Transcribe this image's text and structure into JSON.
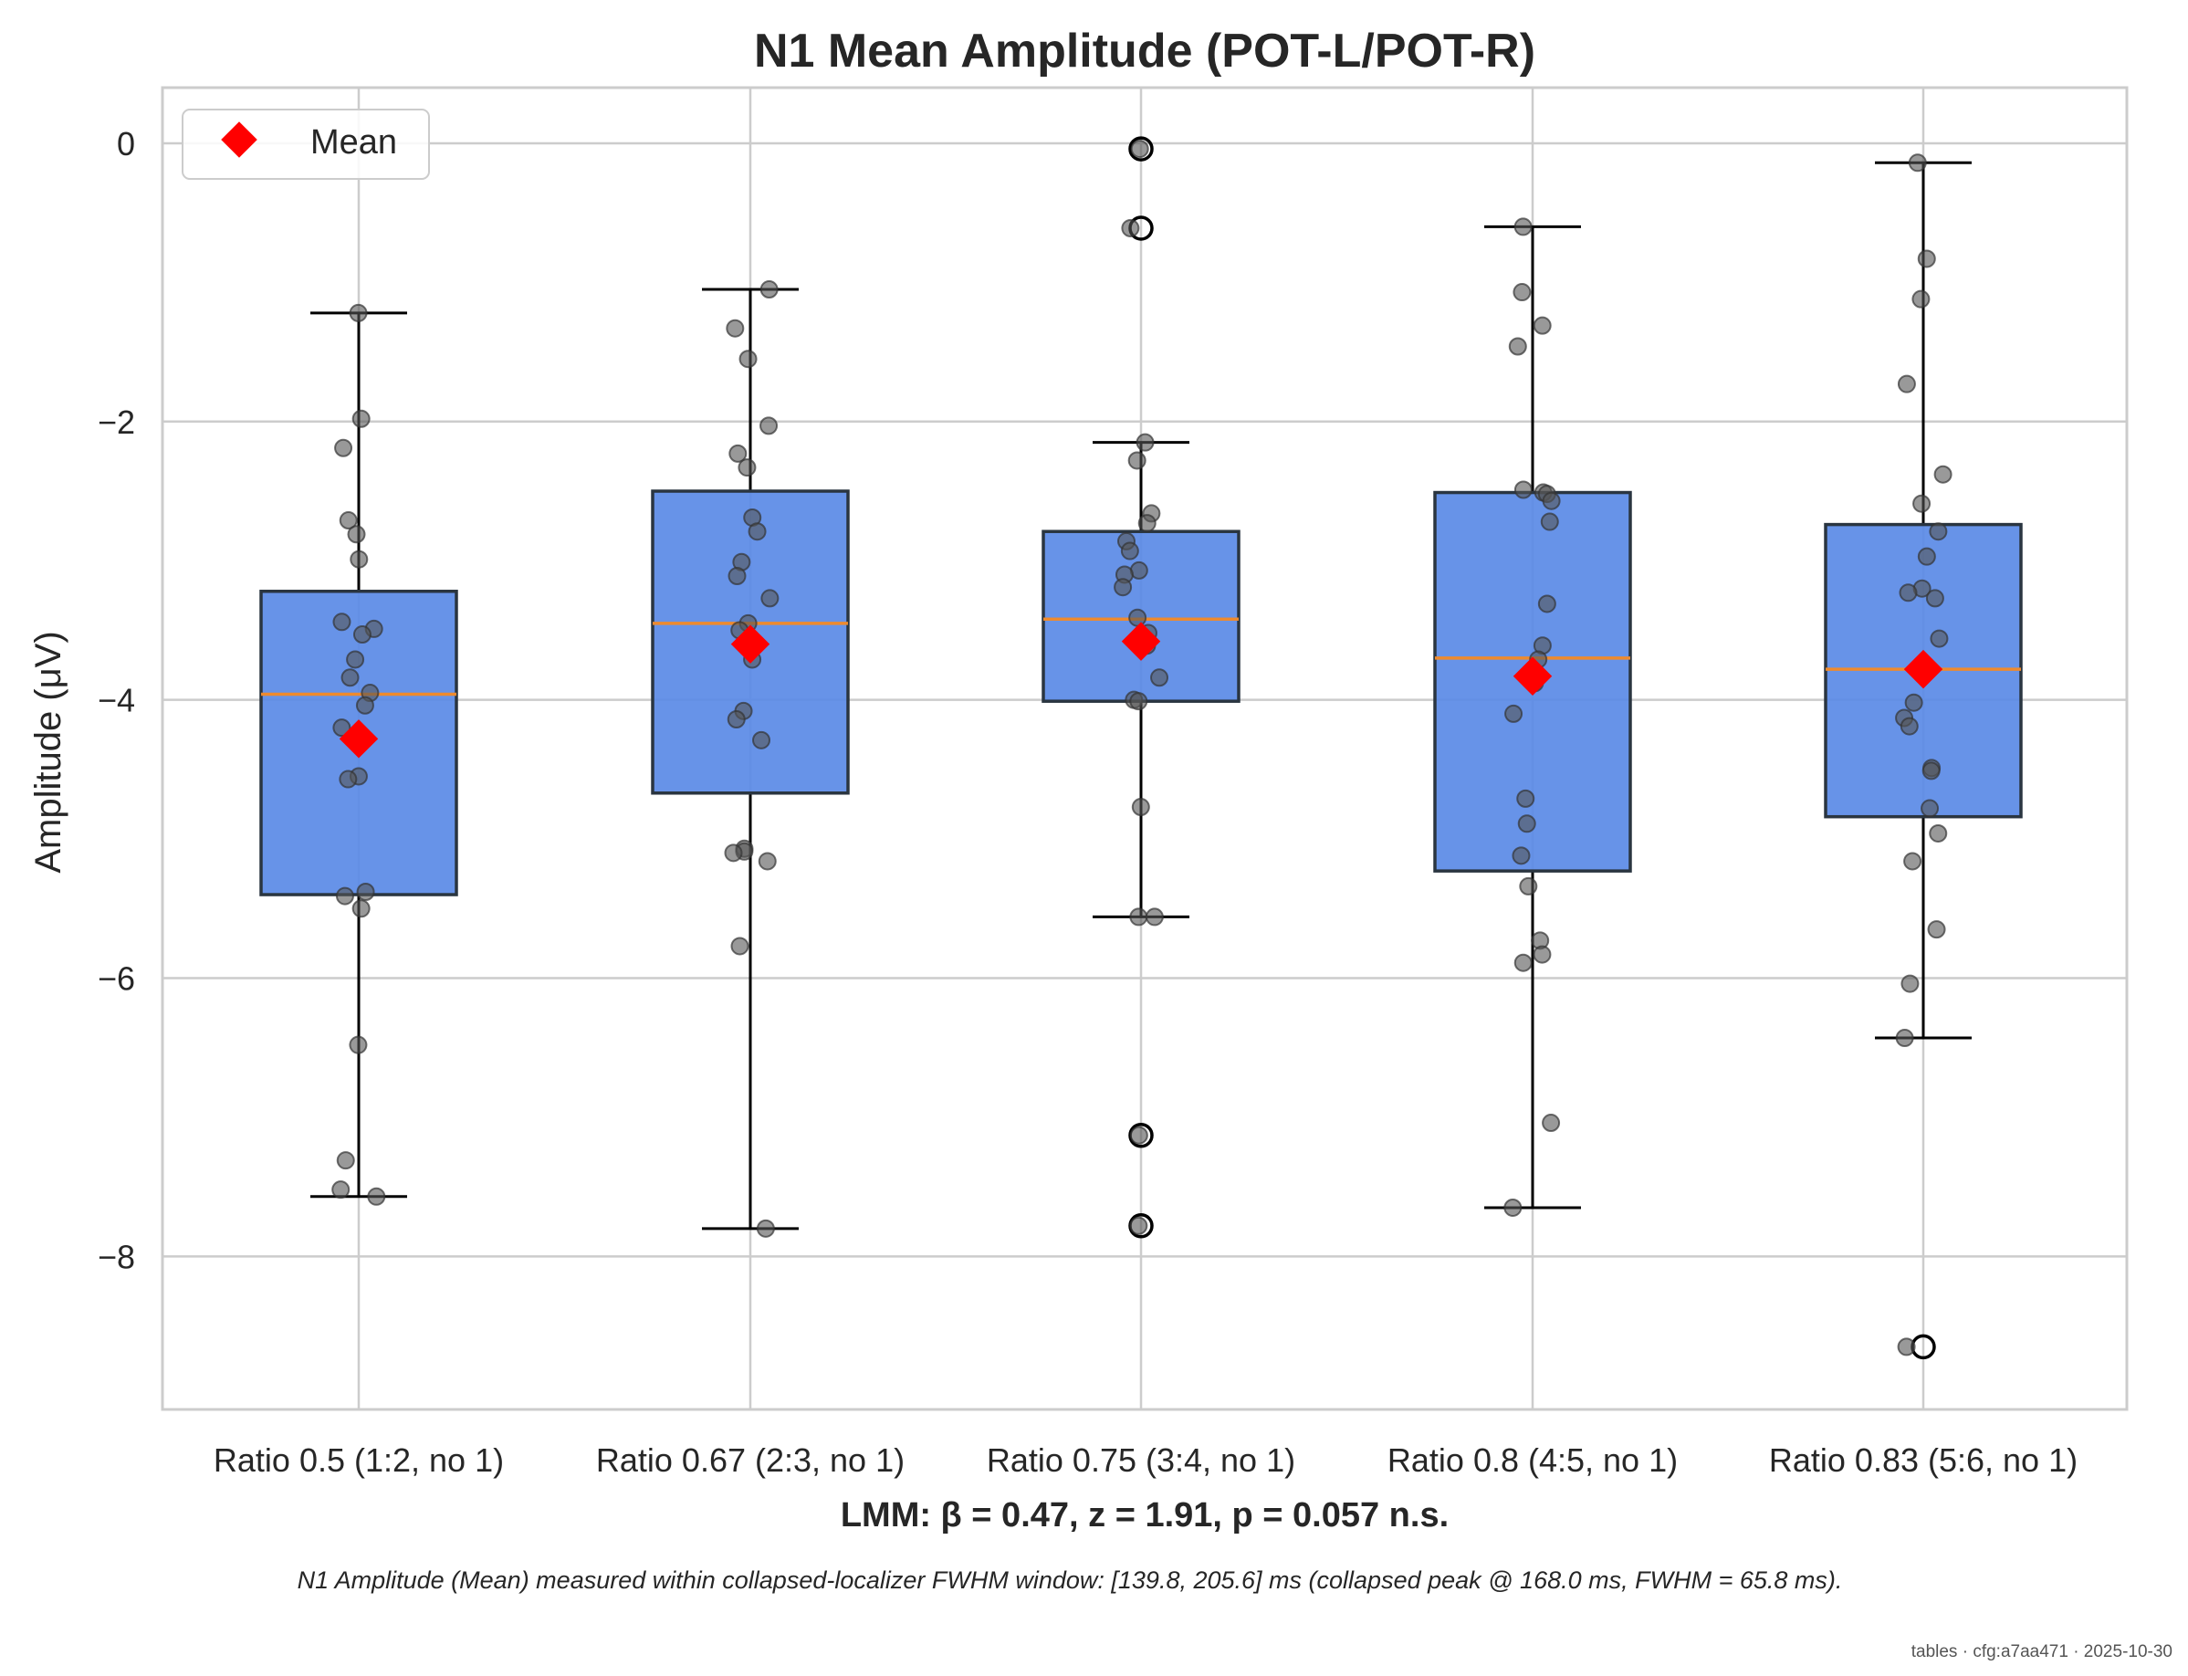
{
  "chart_data": {
    "type": "box",
    "title": "N1 Mean Amplitude (POT-L/POT-R)",
    "xlabel": "",
    "ylabel": "Amplitude (μV)",
    "ylim": [
      -9.1,
      0.4
    ],
    "yticks": [
      0,
      -2,
      -4,
      -6,
      -8
    ],
    "ytick_labels": [
      "0",
      "−2",
      "−4",
      "−6",
      "−8"
    ],
    "grid": true,
    "legend": {
      "placement": "top-left",
      "entries": [
        "Mean"
      ]
    },
    "categories": [
      "Ratio 0.5 (1:2, no 1)",
      "Ratio 0.67 (2:3, no 1)",
      "Ratio 0.75 (3:4, no 1)",
      "Ratio 0.8 (4:5, no 1)",
      "Ratio 0.83 (5:6, no 1)"
    ],
    "boxes": [
      {
        "q1": -5.4,
        "median": -3.96,
        "q3": -3.22,
        "whisker_low": -7.57,
        "whisker_high": -1.22,
        "mean": -4.28,
        "outliers": [],
        "points": [
          -1.22,
          -1.98,
          -2.19,
          -2.71,
          -2.81,
          -2.99,
          -3.44,
          -3.49,
          -3.53,
          -3.71,
          -3.84,
          -3.95,
          -4.04,
          -4.2,
          -4.55,
          -4.57,
          -5.38,
          -5.41,
          -5.5,
          -6.48,
          -7.31,
          -7.52,
          -7.57
        ]
      },
      {
        "q1": -4.67,
        "median": -3.45,
        "q3": -2.5,
        "whisker_low": -7.8,
        "whisker_high": -1.05,
        "mean": -3.6,
        "outliers": [],
        "points": [
          -1.05,
          -1.33,
          -1.55,
          -2.03,
          -2.23,
          -2.33,
          -2.69,
          -2.79,
          -3.01,
          -3.11,
          -3.27,
          -3.45,
          -3.5,
          -3.71,
          -4.08,
          -4.14,
          -4.29,
          -5.07,
          -5.09,
          -5.1,
          -5.16,
          -5.77,
          -7.8
        ]
      },
      {
        "q1": -4.01,
        "median": -3.42,
        "q3": -2.79,
        "whisker_low": -5.56,
        "whisker_high": -2.15,
        "mean": -3.58,
        "outliers": [
          -0.04,
          -0.61,
          -7.13,
          -7.78
        ],
        "points": [
          -0.04,
          -0.61,
          -2.15,
          -2.28,
          -2.66,
          -2.73,
          -2.86,
          -2.93,
          -3.07,
          -3.1,
          -3.19,
          -3.41,
          -3.52,
          -3.61,
          -3.84,
          -4.0,
          -4.01,
          -4.77,
          -5.56,
          -5.56,
          -7.13,
          -7.78
        ]
      },
      {
        "q1": -5.23,
        "median": -3.7,
        "q3": -2.51,
        "whisker_low": -7.65,
        "whisker_high": -0.6,
        "mean": -3.83,
        "outliers": [],
        "points": [
          -0.6,
          -1.07,
          -1.31,
          -1.46,
          -2.49,
          -2.51,
          -2.52,
          -2.57,
          -2.72,
          -3.31,
          -3.61,
          -3.71,
          -3.88,
          -4.1,
          -4.71,
          -4.89,
          -5.12,
          -5.34,
          -5.73,
          -5.83,
          -5.89,
          -7.04,
          -7.65
        ]
      },
      {
        "q1": -4.84,
        "median": -3.78,
        "q3": -2.74,
        "whisker_low": -6.43,
        "whisker_high": -0.14,
        "mean": -3.78,
        "outliers": [
          -8.65
        ],
        "points": [
          -0.14,
          -0.83,
          -1.12,
          -1.73,
          -2.38,
          -2.59,
          -2.79,
          -2.97,
          -3.2,
          -3.23,
          -3.27,
          -3.56,
          -4.02,
          -4.13,
          -4.19,
          -4.49,
          -4.51,
          -4.78,
          -4.96,
          -5.16,
          -5.65,
          -6.04,
          -6.43,
          -8.65
        ]
      }
    ],
    "colors": {
      "box_fill": "#5a8ae6",
      "box_edge": "#2a3540",
      "median": "#ee8a2e",
      "mean_marker": "#ff0000",
      "point": "#555555",
      "grid": "#cccccc",
      "axes_edge": "#cccccc"
    }
  },
  "stat_annotation": "LMM: β = 0.47, z = 1.91, p = 0.057 n.s.",
  "footnote": "N1 Amplitude (Mean) measured within collapsed-localizer FWHM window: [139.8, 205.6] ms (collapsed peak @ 168.0 ms, FWHM = 65.8 ms).",
  "stamp": "tables · cfg:a7aa471 · 2025-10-30"
}
